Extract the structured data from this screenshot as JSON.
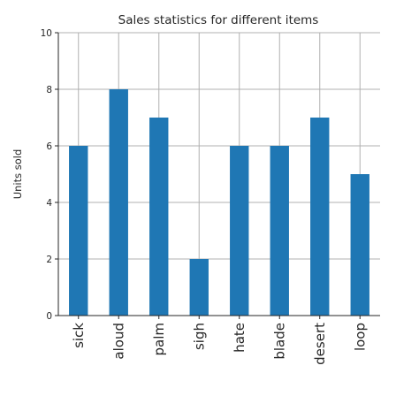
{
  "chart_data": {
    "type": "bar",
    "title": "Sales statistics for different items",
    "xlabel": "",
    "ylabel": "Units sold",
    "categories": [
      "sick",
      "aloud",
      "palm",
      "sigh",
      "hate",
      "blade",
      "desert",
      "loop"
    ],
    "values": [
      6,
      8,
      7,
      2,
      6,
      6,
      7,
      5
    ],
    "ylim": [
      0,
      10
    ],
    "yticks": [
      0,
      2,
      4,
      6,
      8,
      10
    ],
    "grid": true,
    "bar_color": "#1f77b4"
  }
}
